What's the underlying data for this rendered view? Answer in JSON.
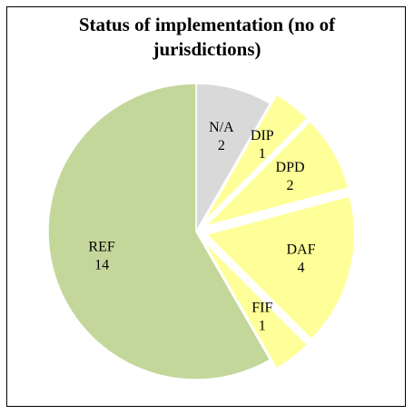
{
  "chart_data": {
    "type": "pie",
    "title": "Status of implementation (no of jurisdictions)",
    "categories": [
      "N/A",
      "DIP",
      "DPD",
      "DAF",
      "FIF",
      "REF"
    ],
    "values": [
      2,
      1,
      2,
      4,
      1,
      14
    ],
    "colors": [
      "#d9d9d9",
      "#ffff99",
      "#ffff99",
      "#ffff99",
      "#ffff99",
      "#c4d79b"
    ],
    "exploded": [
      false,
      true,
      true,
      true,
      true,
      false
    ]
  }
}
